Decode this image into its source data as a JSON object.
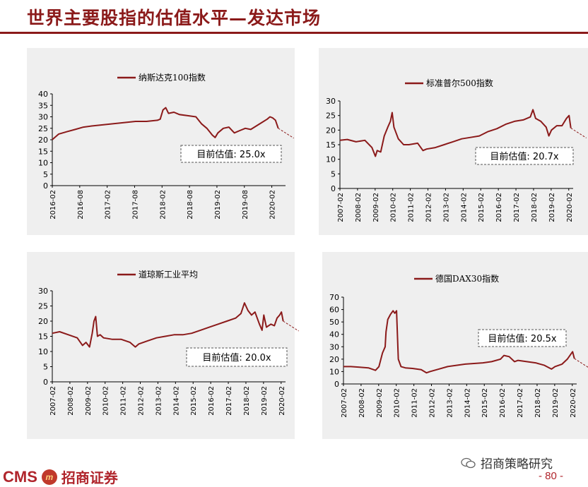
{
  "page": {
    "title": "世界主要股指的估值水平—发达市场",
    "footer_brand": "CMS",
    "footer_badge": "m",
    "footer_cn": "招商证券",
    "wechat_label": "招商策略研究",
    "page_number": "- 80 -"
  },
  "chart_data": [
    {
      "id": "nasdaq",
      "type": "line",
      "legend": "纳斯达克100指数",
      "ylim": [
        0,
        40
      ],
      "yticks": [
        0,
        5,
        10,
        15,
        20,
        25,
        30,
        35,
        40
      ],
      "xlim": [
        2016.083,
        2020.333
      ],
      "xticks": [
        2016.083,
        2016.583,
        2017.083,
        2017.583,
        2018.083,
        2018.583,
        2019.083,
        2019.583,
        2020.083
      ],
      "xtick_labels": [
        "2016-02",
        "2016-08",
        "2017-02",
        "2017-08",
        "2018-02",
        "2018-08",
        "2019-02",
        "2019-08",
        "2020-02"
      ],
      "annotation": "目前估值: 25.0x",
      "current_value": 25.0,
      "series": [
        {
          "color": "#8b1a1a",
          "points": [
            [
              2016.08,
              20
            ],
            [
              2016.2,
              22.5
            ],
            [
              2016.35,
              23.5
            ],
            [
              2016.5,
              24.5
            ],
            [
              2016.65,
              25.5
            ],
            [
              2016.8,
              26
            ],
            [
              2017.0,
              26.5
            ],
            [
              2017.2,
              27
            ],
            [
              2017.4,
              27.5
            ],
            [
              2017.6,
              28
            ],
            [
              2017.8,
              28
            ],
            [
              2018.0,
              28.5
            ],
            [
              2018.05,
              29
            ],
            [
              2018.1,
              33
            ],
            [
              2018.15,
              34
            ],
            [
              2018.2,
              31.5
            ],
            [
              2018.3,
              32
            ],
            [
              2018.4,
              31
            ],
            [
              2018.55,
              30.5
            ],
            [
              2018.7,
              30
            ],
            [
              2018.8,
              27
            ],
            [
              2018.9,
              25
            ],
            [
              2019.0,
              22
            ],
            [
              2019.05,
              21
            ],
            [
              2019.1,
              23
            ],
            [
              2019.2,
              25
            ],
            [
              2019.3,
              25.5
            ],
            [
              2019.4,
              23
            ],
            [
              2019.5,
              24
            ],
            [
              2019.6,
              25
            ],
            [
              2019.7,
              24.5
            ],
            [
              2019.8,
              26
            ],
            [
              2019.9,
              27.5
            ],
            [
              2020.0,
              29
            ],
            [
              2020.05,
              30
            ],
            [
              2020.1,
              29.5
            ],
            [
              2020.15,
              28.5
            ],
            [
              2020.2,
              25
            ]
          ]
        }
      ]
    },
    {
      "id": "sp500",
      "type": "line",
      "legend": "标准普尔500指数",
      "ylim": [
        0,
        30
      ],
      "yticks": [
        0,
        5,
        10,
        15,
        20,
        25,
        30
      ],
      "xlim": [
        2007.083,
        2020.333
      ],
      "xticks": [
        2007.083,
        2008.083,
        2009.083,
        2010.083,
        2011.083,
        2012.083,
        2013.083,
        2014.083,
        2015.083,
        2016.083,
        2017.083,
        2018.083,
        2019.083,
        2020.083
      ],
      "xtick_labels": [
        "2007-02",
        "2008-02",
        "2009-02",
        "2010-02",
        "2011-02",
        "2012-02",
        "2013-02",
        "2014-02",
        "2015-02",
        "2016-02",
        "2017-02",
        "2018-02",
        "2019-02",
        "2020-02"
      ],
      "annotation": "目前估值: 20.7x",
      "current_value": 20.7,
      "series": [
        {
          "color": "#8b1a1a",
          "points": [
            [
              2007.08,
              16.5
            ],
            [
              2007.5,
              16.8
            ],
            [
              2008.0,
              16
            ],
            [
              2008.5,
              16.5
            ],
            [
              2008.9,
              14
            ],
            [
              2009.1,
              11
            ],
            [
              2009.2,
              13
            ],
            [
              2009.4,
              12.5
            ],
            [
              2009.6,
              18
            ],
            [
              2009.8,
              21
            ],
            [
              2009.95,
              23
            ],
            [
              2010.05,
              26
            ],
            [
              2010.15,
              21
            ],
            [
              2010.4,
              17
            ],
            [
              2010.7,
              15
            ],
            [
              2011.0,
              15
            ],
            [
              2011.5,
              15.5
            ],
            [
              2011.8,
              13
            ],
            [
              2012.0,
              13.5
            ],
            [
              2012.5,
              14
            ],
            [
              2013.0,
              15
            ],
            [
              2013.5,
              16
            ],
            [
              2014.0,
              17
            ],
            [
              2014.5,
              17.5
            ],
            [
              2015.0,
              18
            ],
            [
              2015.5,
              19.5
            ],
            [
              2016.0,
              20.5
            ],
            [
              2016.5,
              22
            ],
            [
              2017.0,
              23
            ],
            [
              2017.5,
              23.5
            ],
            [
              2017.9,
              24.5
            ],
            [
              2018.05,
              27
            ],
            [
              2018.2,
              24
            ],
            [
              2018.5,
              23
            ],
            [
              2018.8,
              21
            ],
            [
              2018.95,
              18
            ],
            [
              2019.1,
              20
            ],
            [
              2019.4,
              21.5
            ],
            [
              2019.7,
              21.5
            ],
            [
              2019.95,
              24
            ],
            [
              2020.1,
              25
            ],
            [
              2020.2,
              20.7
            ]
          ]
        }
      ]
    },
    {
      "id": "dow",
      "type": "line",
      "legend": "道琼斯工业平均",
      "ylim": [
        0,
        30
      ],
      "yticks": [
        0,
        5,
        10,
        15,
        20,
        25,
        30
      ],
      "xlim": [
        2007.083,
        2020.333
      ],
      "xticks": [
        2007.083,
        2008.083,
        2009.083,
        2010.083,
        2011.083,
        2012.083,
        2013.083,
        2014.083,
        2015.083,
        2016.083,
        2017.083,
        2018.083,
        2019.083,
        2020.083
      ],
      "xtick_labels": [
        "2007-02",
        "2008-02",
        "2009-02",
        "2010-02",
        "2011-02",
        "2012-02",
        "2013-02",
        "2014-02",
        "2015-02",
        "2016-02",
        "2017-02",
        "2018-02",
        "2019-02",
        "2020-02"
      ],
      "annotation": "目前估值: 20.0x",
      "current_value": 20.0,
      "series": [
        {
          "color": "#8b1a1a",
          "points": [
            [
              2007.08,
              16
            ],
            [
              2007.5,
              16.5
            ],
            [
              2008.0,
              15.5
            ],
            [
              2008.5,
              14.5
            ],
            [
              2008.8,
              12
            ],
            [
              2009.0,
              13
            ],
            [
              2009.2,
              11.5
            ],
            [
              2009.35,
              16
            ],
            [
              2009.45,
              20
            ],
            [
              2009.55,
              21.5
            ],
            [
              2009.65,
              15
            ],
            [
              2009.8,
              15.5
            ],
            [
              2010.0,
              14.5
            ],
            [
              2010.5,
              14
            ],
            [
              2011.0,
              14
            ],
            [
              2011.5,
              13
            ],
            [
              2011.8,
              11.5
            ],
            [
              2012.0,
              12.5
            ],
            [
              2012.5,
              13.5
            ],
            [
              2013.0,
              14.5
            ],
            [
              2013.5,
              15
            ],
            [
              2014.0,
              15.5
            ],
            [
              2014.5,
              15.5
            ],
            [
              2015.0,
              16
            ],
            [
              2015.5,
              17
            ],
            [
              2016.0,
              18
            ],
            [
              2016.5,
              19
            ],
            [
              2017.0,
              20
            ],
            [
              2017.5,
              21
            ],
            [
              2017.8,
              22.5
            ],
            [
              2018.0,
              26
            ],
            [
              2018.2,
              23.5
            ],
            [
              2018.4,
              22
            ],
            [
              2018.6,
              23
            ],
            [
              2018.85,
              19
            ],
            [
              2019.0,
              17
            ],
            [
              2019.1,
              22
            ],
            [
              2019.25,
              18
            ],
            [
              2019.5,
              19
            ],
            [
              2019.7,
              18.5
            ],
            [
              2019.85,
              21
            ],
            [
              2020.0,
              22
            ],
            [
              2020.1,
              23
            ],
            [
              2020.2,
              20
            ]
          ]
        }
      ]
    },
    {
      "id": "dax",
      "type": "line",
      "legend": "德国DAX30指数",
      "ylim": [
        0,
        70
      ],
      "yticks": [
        0,
        10,
        20,
        30,
        40,
        50,
        60,
        70
      ],
      "xlim": [
        2007.083,
        2020.333
      ],
      "xticks": [
        2007.083,
        2008.083,
        2009.083,
        2010.083,
        2011.083,
        2012.083,
        2013.083,
        2014.083,
        2015.083,
        2016.083,
        2017.083,
        2018.083,
        2019.083,
        2020.083
      ],
      "xtick_labels": [
        "2007-02",
        "2008-02",
        "2009-02",
        "2010-02",
        "2011-02",
        "2012-02",
        "2013-02",
        "2014-02",
        "2015-02",
        "2016-02",
        "2017-02",
        "2018-02",
        "2019-02",
        "2020-02"
      ],
      "annotation": "目前估值: 20.5x",
      "current_value": 20.5,
      "series": [
        {
          "color": "#8b1a1a",
          "points": [
            [
              2007.08,
              14
            ],
            [
              2007.5,
              14
            ],
            [
              2008.0,
              13.5
            ],
            [
              2008.5,
              13
            ],
            [
              2008.9,
              11
            ],
            [
              2009.1,
              14
            ],
            [
              2009.3,
              25
            ],
            [
              2009.45,
              30
            ],
            [
              2009.5,
              42
            ],
            [
              2009.6,
              52
            ],
            [
              2009.75,
              56
            ],
            [
              2009.9,
              59
            ],
            [
              2010.0,
              57
            ],
            [
              2010.1,
              59
            ],
            [
              2010.2,
              20
            ],
            [
              2010.35,
              14
            ],
            [
              2010.6,
              13
            ],
            [
              2011.0,
              12.5
            ],
            [
              2011.5,
              11.5
            ],
            [
              2011.8,
              9
            ],
            [
              2012.0,
              10
            ],
            [
              2012.5,
              12
            ],
            [
              2013.0,
              14
            ],
            [
              2013.5,
              15
            ],
            [
              2014.0,
              16
            ],
            [
              2014.5,
              16.5
            ],
            [
              2015.0,
              17
            ],
            [
              2015.5,
              18
            ],
            [
              2016.0,
              20
            ],
            [
              2016.2,
              23
            ],
            [
              2016.5,
              22
            ],
            [
              2016.8,
              18
            ],
            [
              2017.0,
              19
            ],
            [
              2017.5,
              18
            ],
            [
              2018.0,
              17
            ],
            [
              2018.5,
              15
            ],
            [
              2018.9,
              12
            ],
            [
              2019.1,
              14
            ],
            [
              2019.5,
              16
            ],
            [
              2019.8,
              20
            ],
            [
              2020.0,
              24
            ],
            [
              2020.1,
              26
            ],
            [
              2020.2,
              20.5
            ]
          ]
        }
      ]
    }
  ]
}
